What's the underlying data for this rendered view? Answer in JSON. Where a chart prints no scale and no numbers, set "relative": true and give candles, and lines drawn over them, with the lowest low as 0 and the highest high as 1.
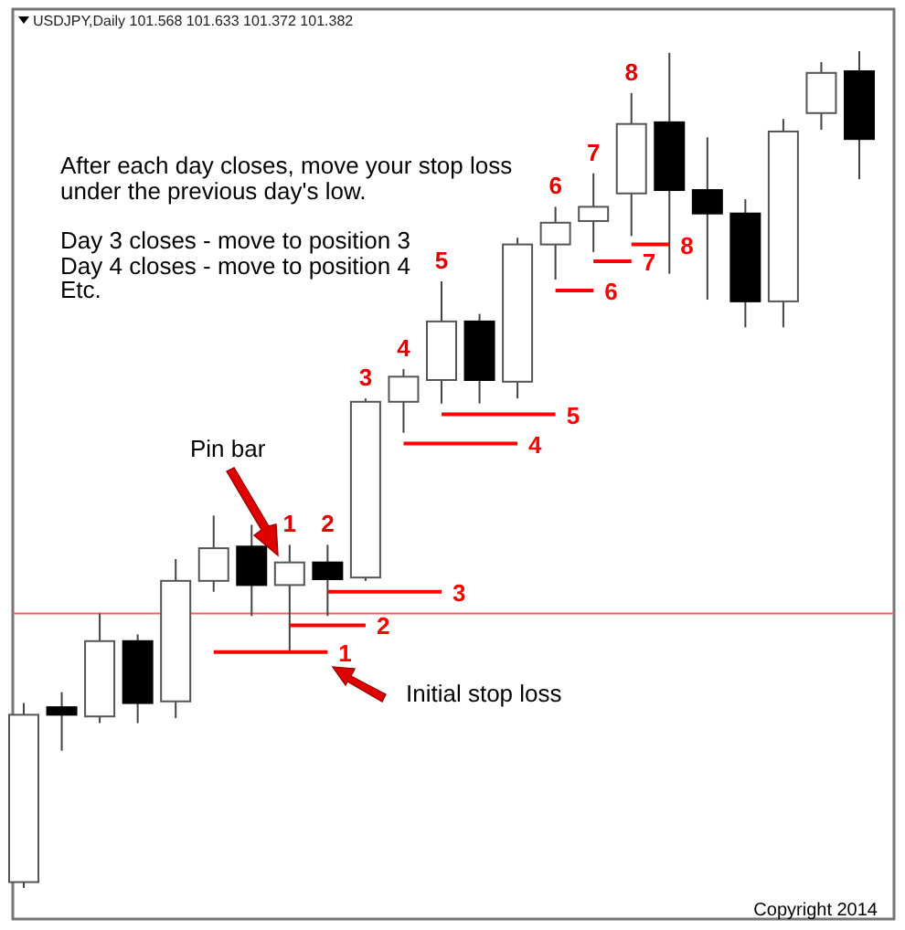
{
  "chart_data": {
    "type": "candlestick",
    "title": "USDJPY,Daily  101.568 101.633 101.372 101.382",
    "relative": true,
    "categories": [
      null,
      null,
      null,
      null,
      null,
      null,
      null,
      null,
      null,
      null,
      null,
      null,
      null,
      null,
      null,
      null,
      null,
      null,
      null,
      null,
      null,
      null,
      null
    ],
    "ohlc": [
      [
        0.007,
        0.221,
        0,
        0.207
      ],
      [
        0.216,
        0.234,
        0.164,
        0.207
      ],
      [
        0.205,
        0.328,
        0.197,
        0.295
      ],
      [
        0.295,
        0.303,
        0.197,
        0.221
      ],
      [
        0.223,
        0.393,
        0.203,
        0.367
      ],
      [
        0.367,
        0.445,
        0.354,
        0.406
      ],
      [
        0.408,
        0.434,
        0.325,
        0.362
      ],
      [
        0.362,
        0.41,
        0.282,
        0.389
      ],
      [
        0.389,
        0.41,
        0.325,
        0.369
      ],
      [
        0.371,
        0.585,
        0.367,
        0.581
      ],
      [
        0.581,
        0.62,
        0.544,
        0.611
      ],
      [
        0.607,
        0.725,
        0.579,
        0.677
      ],
      [
        0.677,
        0.686,
        0.579,
        0.607
      ],
      [
        0.605,
        0.777,
        0.585,
        0.769
      ],
      [
        0.769,
        0.814,
        0.727,
        0.795
      ],
      [
        0.797,
        0.854,
        0.76,
        0.814
      ],
      [
        0.83,
        0.95,
        0.779,
        0.913
      ],
      [
        0.915,
        0.998,
        0.734,
        0.834
      ],
      [
        0.834,
        0.897,
        0.703,
        0.806
      ],
      [
        0.806,
        0.823,
        0.67,
        0.701
      ],
      [
        0.701,
        0.919,
        0.67,
        0.904
      ],
      [
        0.926,
        0.987,
        0.906,
        0.974
      ],
      [
        0.976,
        1,
        0.847,
        0.895
      ]
    ],
    "value_labels": [
      null,
      null,
      null,
      null,
      null,
      null,
      null,
      "1",
      "2",
      "3",
      "4",
      "5",
      null,
      null,
      "6",
      "7",
      "8",
      null,
      null,
      null,
      null,
      null,
      null
    ],
    "series": [
      {
        "type": "line",
        "name": "1",
        "color": "#ff0000",
        "values": [
          null,
          null,
          null,
          null,
          null,
          0.282,
          0.282,
          0.282,
          0.282,
          null,
          null,
          null,
          null,
          null,
          null,
          null,
          null,
          null,
          null,
          null,
          null,
          null,
          null
        ]
      },
      {
        "type": "line",
        "name": "2",
        "color": "#ff0000",
        "values": [
          null,
          null,
          null,
          null,
          null,
          null,
          null,
          0.314,
          0.314,
          0.314,
          null,
          null,
          null,
          null,
          null,
          null,
          null,
          null,
          null,
          null,
          null,
          null,
          null
        ]
      },
      {
        "type": "line",
        "name": "3",
        "color": "#ff0000",
        "values": [
          null,
          null,
          null,
          null,
          null,
          null,
          null,
          null,
          0.354,
          0.354,
          0.354,
          0.354,
          null,
          null,
          null,
          null,
          null,
          null,
          null,
          null,
          null,
          null,
          null
        ]
      },
      {
        "type": "line",
        "name": "4",
        "color": "#ff0000",
        "values": [
          null,
          null,
          null,
          null,
          null,
          null,
          null,
          null,
          null,
          null,
          0.531,
          0.531,
          0.531,
          0.531,
          null,
          null,
          null,
          null,
          null,
          null,
          null,
          null,
          null
        ]
      },
      {
        "type": "line",
        "name": "5",
        "color": "#ff0000",
        "values": [
          null,
          null,
          null,
          null,
          null,
          null,
          null,
          null,
          null,
          null,
          null,
          0.566,
          0.566,
          0.566,
          0.566,
          null,
          null,
          null,
          null,
          null,
          null,
          null,
          null
        ]
      },
      {
        "type": "line",
        "name": "6",
        "color": "#ff0000",
        "values": [
          null,
          null,
          null,
          null,
          null,
          null,
          null,
          null,
          null,
          null,
          null,
          null,
          null,
          null,
          0.714,
          0.714,
          null,
          null,
          null,
          null,
          null,
          null,
          null
        ]
      },
      {
        "type": "line",
        "name": "7",
        "color": "#ff0000",
        "values": [
          null,
          null,
          null,
          null,
          null,
          null,
          null,
          null,
          null,
          null,
          null,
          null,
          null,
          null,
          null,
          0.749,
          0.749,
          null,
          null,
          null,
          null,
          null,
          null
        ]
      },
      {
        "type": "line",
        "name": "8",
        "color": "#ff0000",
        "values": [
          null,
          null,
          null,
          null,
          null,
          null,
          null,
          null,
          null,
          null,
          null,
          null,
          null,
          null,
          null,
          null,
          0.769,
          0.769,
          null,
          null,
          null,
          null,
          null
        ]
      }
    ],
    "ref_lines": [
      {
        "axis": "y",
        "value": 0.328,
        "color": "#f06060"
      }
    ],
    "annotations": [
      "After each day closes, move your stop loss",
      "under the previous day's low.",
      "Day 3 closes - move to position 3",
      "Day 4 closes - move to position 4",
      "Etc.",
      "Pin bar",
      "Initial stop loss",
      "Copyright 2014"
    ]
  }
}
